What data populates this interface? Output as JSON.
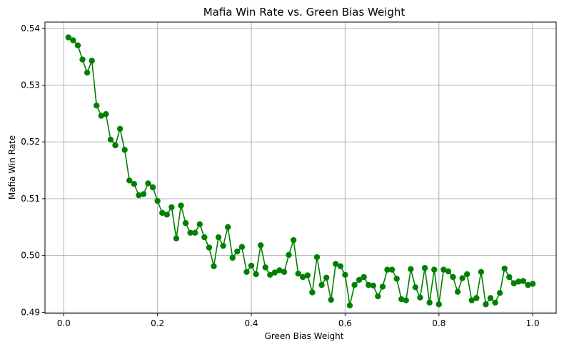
{
  "chart_data": {
    "type": "line",
    "title": "Mafia Win Rate vs. Green Bias Weight",
    "xlabel": "Green Bias Weight",
    "ylabel": "Mafia Win Rate",
    "xlim": [
      -0.04,
      1.05
    ],
    "ylim": [
      0.4898,
      0.5411
    ],
    "xticks": [
      0.0,
      0.2,
      0.4,
      0.6,
      0.8,
      1.0
    ],
    "xtick_labels": [
      "0.0",
      "0.2",
      "0.4",
      "0.6",
      "0.8",
      "1.0"
    ],
    "yticks": [
      0.49,
      0.5,
      0.51,
      0.52,
      0.53,
      0.54
    ],
    "ytick_labels": [
      "0.49",
      "0.50",
      "0.51",
      "0.52",
      "0.53",
      "0.54"
    ],
    "grid": true,
    "colors": {
      "series": "#008000",
      "grid": "#b0b0b0",
      "axes": "#000000"
    },
    "series": [
      {
        "marker": "circle",
        "x": [
          0.01,
          0.02,
          0.03,
          0.04,
          0.05,
          0.06,
          0.07,
          0.08,
          0.09,
          0.1,
          0.11,
          0.12,
          0.13,
          0.14,
          0.15,
          0.16,
          0.17,
          0.18,
          0.19,
          0.2,
          0.21,
          0.22,
          0.23,
          0.24,
          0.25,
          0.26,
          0.27,
          0.28,
          0.29,
          0.3,
          0.31,
          0.32,
          0.33,
          0.34,
          0.35,
          0.36,
          0.37,
          0.38,
          0.39,
          0.4,
          0.41,
          0.42,
          0.43,
          0.44,
          0.45,
          0.46,
          0.47,
          0.48,
          0.49,
          0.5,
          0.51,
          0.52,
          0.53,
          0.54,
          0.55,
          0.56,
          0.57,
          0.58,
          0.59,
          0.6,
          0.61,
          0.62,
          0.63,
          0.64,
          0.65,
          0.66,
          0.67,
          0.68,
          0.69,
          0.7,
          0.71,
          0.72,
          0.73,
          0.74,
          0.75,
          0.76,
          0.77,
          0.78,
          0.79,
          0.8,
          0.81,
          0.82,
          0.83,
          0.84,
          0.85,
          0.86,
          0.87,
          0.88,
          0.89,
          0.9,
          0.91,
          0.92,
          0.93,
          0.94,
          0.95,
          0.96,
          0.97,
          0.98,
          0.99,
          1.0
        ],
        "y": [
          0.5384,
          0.5379,
          0.537,
          0.5345,
          0.5322,
          0.5343,
          0.5264,
          0.5246,
          0.5249,
          0.5204,
          0.5194,
          0.5223,
          0.5186,
          0.5132,
          0.5126,
          0.5106,
          0.5108,
          0.5127,
          0.512,
          0.5096,
          0.5075,
          0.5072,
          0.5085,
          0.503,
          0.5088,
          0.5057,
          0.504,
          0.504,
          0.5055,
          0.5032,
          0.5014,
          0.4981,
          0.5032,
          0.5017,
          0.505,
          0.4996,
          0.5007,
          0.5015,
          0.4971,
          0.4982,
          0.4967,
          0.5018,
          0.4979,
          0.4966,
          0.497,
          0.4974,
          0.4971,
          0.5001,
          0.5027,
          0.4968,
          0.4962,
          0.4965,
          0.4935,
          0.4997,
          0.4948,
          0.4961,
          0.4922,
          0.4985,
          0.4981,
          0.4966,
          0.4912,
          0.4948,
          0.4957,
          0.4962,
          0.4948,
          0.4947,
          0.4928,
          0.4945,
          0.4975,
          0.4975,
          0.4959,
          0.4923,
          0.4921,
          0.4976,
          0.4944,
          0.4926,
          0.4978,
          0.4917,
          0.4975,
          0.4914,
          0.4975,
          0.4972,
          0.4962,
          0.4936,
          0.496,
          0.4967,
          0.4921,
          0.4925,
          0.4971,
          0.4914,
          0.4925,
          0.4917,
          0.4934,
          0.4977,
          0.4962,
          0.4951,
          0.4954,
          0.4955,
          0.4948,
          0.495
        ]
      }
    ]
  }
}
